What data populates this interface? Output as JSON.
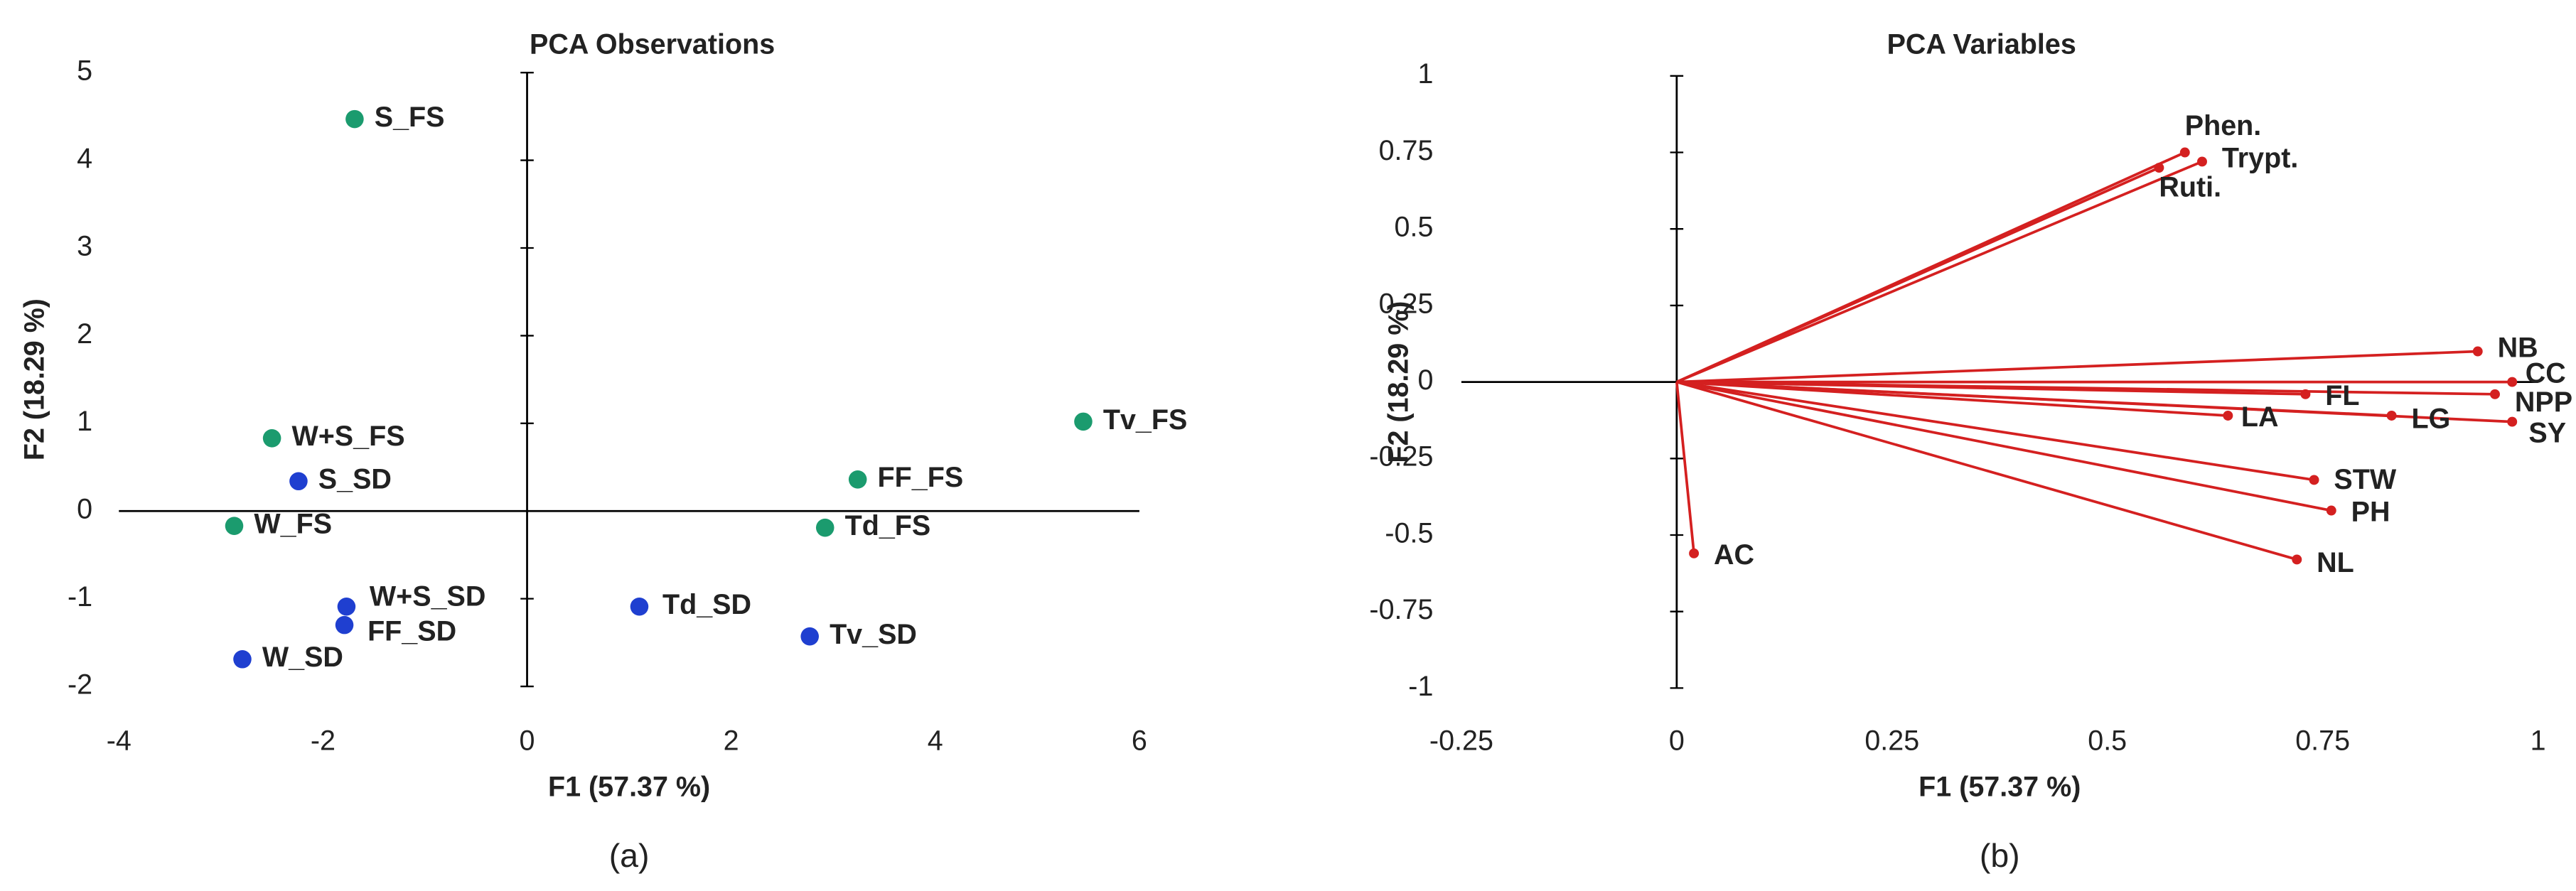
{
  "chart_data": [
    {
      "type": "scatter",
      "title": "PCA Observations",
      "x_label": "F1 (57.37 %)",
      "y_label": "F2 (18.29 %)",
      "caption": "(a)",
      "labels": [
        "S_FS",
        "W+S_FS",
        "S_SD",
        "W_FS",
        "W+S_SD",
        "FF_SD",
        "W_SD",
        "Td_SD",
        "Tv_SD",
        "Td_FS",
        "FF_FS",
        "Tv_FS"
      ],
      "x": [
        -1.69,
        -2.5,
        -2.24,
        -2.87,
        -1.77,
        -1.79,
        -2.79,
        1.1,
        2.77,
        2.92,
        3.24,
        5.45
      ],
      "y": [
        4.47,
        0.83,
        0.34,
        -0.17,
        -1.09,
        -1.3,
        -1.69,
        -1.09,
        -1.43,
        -0.19,
        0.36,
        1.02
      ],
      "colors": [
        "#1b9b6e",
        "#1b9b6e",
        "#1f3fd0",
        "#1b9b6e",
        "#1f3fd0",
        "#1f3fd0",
        "#1f3fd0",
        "#1f3fd0",
        "#1f3fd0",
        "#1b9b6e",
        "#1b9b6e",
        "#1b9b6e"
      ],
      "xlim": [
        -4,
        6
      ],
      "ylim": [
        -2,
        5
      ],
      "xticks": [
        -4,
        -2,
        0,
        2,
        4,
        6
      ],
      "yticks": [
        -2,
        -1,
        0,
        1,
        2,
        3,
        4,
        5
      ]
    },
    {
      "type": "vector",
      "title": "PCA Variables",
      "x_label": "F1 (57.37 %)",
      "y_label": "F2 (18.29 %)",
      "caption": "(b)",
      "labels": [
        "Phen.",
        "Trypt.",
        "Ruti.",
        "NB",
        "CC",
        "NPP",
        "SY",
        "LG",
        "FL",
        "LA",
        "STW",
        "PH",
        "NL",
        "AC"
      ],
      "x": [
        0.59,
        0.61,
        0.56,
        0.93,
        0.97,
        0.95,
        0.97,
        0.83,
        0.73,
        0.64,
        0.74,
        0.76,
        0.72,
        0.02
      ],
      "y": [
        0.75,
        0.72,
        0.7,
        0.1,
        0,
        -0.04,
        -0.13,
        -0.11,
        -0.04,
        -0.11,
        -0.32,
        -0.42,
        -0.58,
        -0.56
      ],
      "color": "#d42020",
      "xlim": [
        -0.25,
        1
      ],
      "ylim": [
        -1,
        1
      ],
      "xticks": [
        -0.25,
        0,
        0.25,
        0.5,
        0.75,
        1
      ],
      "yticks": [
        -1,
        -0.75,
        -0.5,
        -0.25,
        0,
        0.25,
        0.5,
        0.75,
        1
      ]
    }
  ]
}
